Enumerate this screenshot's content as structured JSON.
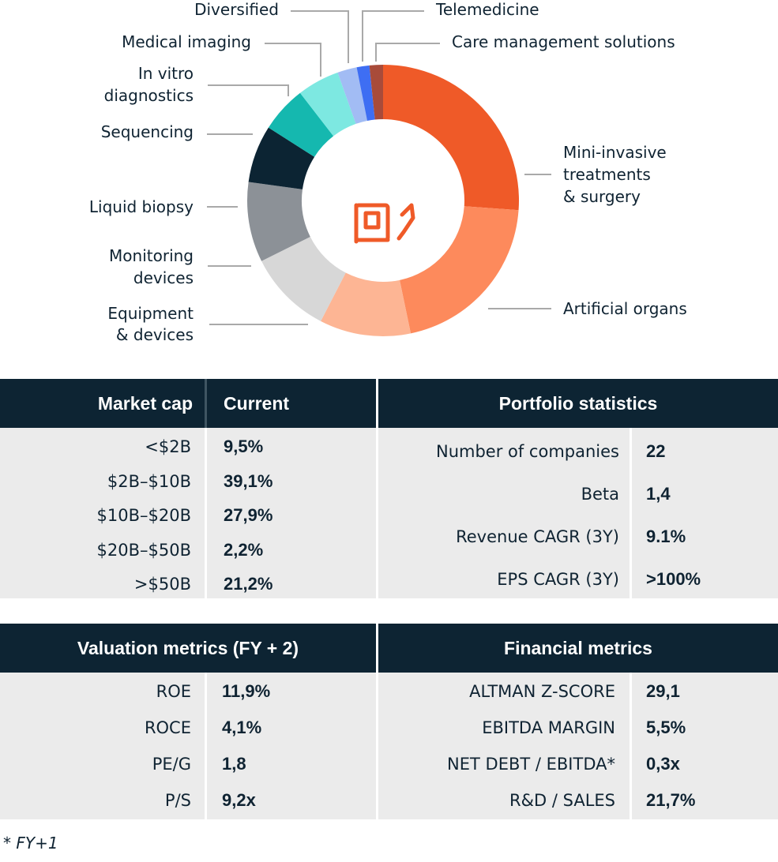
{
  "chart_data": {
    "type": "pie",
    "title": "",
    "categories": [
      "Mini-invasive treatments & surgery",
      "Artificial organs",
      "Equipment & devices",
      "Monitoring devices",
      "Liquid biopsy",
      "Sequencing",
      "In vitro diagnostics",
      "Medical imaging",
      "Diversified",
      "Telemedicine",
      "Care management solutions"
    ],
    "values": [
      26.0,
      20.5,
      10.8,
      10.0,
      9.5,
      6.8,
      5.5,
      5.0,
      2.3,
      1.5,
      1.6
    ],
    "colors": [
      "#ef5a28",
      "#fd8a5c",
      "#fdb594",
      "#d7d7d7",
      "#8c9197",
      "#0c2433",
      "#15b8af",
      "#7de8e1",
      "#a2bcf4",
      "#3e6ef3",
      "#a84b3a"
    ],
    "labels": [
      [
        "Mini-invasive",
        "treatments",
        "& surgery"
      ],
      [
        "Artificial organs"
      ],
      [
        "Equipment",
        "& devices"
      ],
      [
        "Monitoring",
        "devices"
      ],
      [
        "Liquid biopsy"
      ],
      [
        "Sequencing"
      ],
      [
        "In vitro",
        "diagnostics"
      ],
      [
        "Medical imaging"
      ],
      [
        "Diversified"
      ],
      [
        "Telemedicine"
      ],
      [
        "Care management solutions"
      ]
    ],
    "center_icon": "hand-chip-icon"
  },
  "market_cap": {
    "header_key": "Market cap",
    "header_value": "Current",
    "rows": [
      {
        "k": "<$2B",
        "v": "9,5%"
      },
      {
        "k": "$2B–$10B",
        "v": "39,1%"
      },
      {
        "k": "$10B–$20B",
        "v": "27,9%"
      },
      {
        "k": "$20B–$50B",
        "v": "2,2%"
      },
      {
        "k": ">$50B",
        "v": "21,2%"
      }
    ]
  },
  "portfolio": {
    "header": "Portfolio statistics",
    "rows": [
      {
        "k": "Number of companies",
        "v": "22"
      },
      {
        "k": "Beta",
        "v": "1,4"
      },
      {
        "k": "Revenue CAGR (3Y)",
        "v": "9.1%"
      },
      {
        "k": "EPS CAGR (3Y)",
        "v": ">100%"
      }
    ]
  },
  "valuation": {
    "header": "Valuation metrics (FY + 2)",
    "rows": [
      {
        "k": "ROE",
        "v": "11,9%"
      },
      {
        "k": "ROCE",
        "v": "4,1%"
      },
      {
        "k": "PE/G",
        "v": "1,8"
      },
      {
        "k": "P/S",
        "v": "9,2x"
      }
    ]
  },
  "financial": {
    "header": "Financial metrics",
    "rows": [
      {
        "k": "ALTMAN Z-SCORE",
        "v": "29,1"
      },
      {
        "k": "EBITDA MARGIN",
        "v": "5,5%"
      },
      {
        "k": "NET DEBT / EBITDA*",
        "v": "0,3x"
      },
      {
        "k": "R&D / SALES",
        "v": "21,7%"
      }
    ]
  },
  "footnote": "* FY+1"
}
